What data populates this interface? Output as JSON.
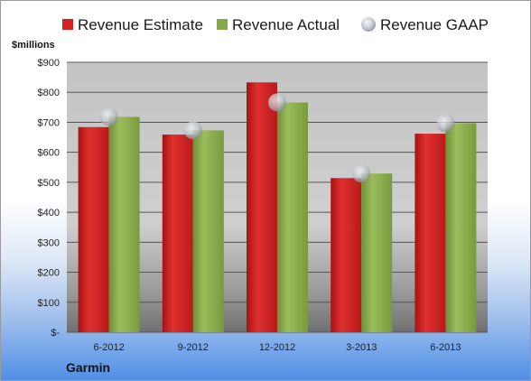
{
  "company": "Garmin",
  "chart_data": {
    "type": "bar",
    "ylabel": "$millions",
    "categories": [
      "6-2012",
      "9-2012",
      "12-2012",
      "3-2013",
      "6-2013"
    ],
    "ylim": [
      0,
      900
    ],
    "yticks": [
      {
        "value": 0,
        "label": "$-"
      },
      {
        "value": 100,
        "label": "$100"
      },
      {
        "value": 200,
        "label": "$200"
      },
      {
        "value": 300,
        "label": "$300"
      },
      {
        "value": 400,
        "label": "$400"
      },
      {
        "value": 500,
        "label": "$500"
      },
      {
        "value": 600,
        "label": "$600"
      },
      {
        "value": 700,
        "label": "$700"
      },
      {
        "value": 800,
        "label": "$800"
      },
      {
        "value": 900,
        "label": "$900"
      }
    ],
    "grid": true,
    "legend_position": "top",
    "series": [
      {
        "name": "Revenue Estimate",
        "kind": "bar",
        "color": "#d42222",
        "values": [
          684,
          659,
          833,
          514,
          662
        ]
      },
      {
        "name": "Revenue Actual",
        "kind": "bar",
        "color": "#86a84a",
        "values": [
          718,
          673,
          766,
          529,
          697
        ]
      },
      {
        "name": "Revenue GAAP",
        "kind": "marker",
        "color": "#b8bcc4",
        "values": [
          718,
          673,
          766,
          529,
          697
        ]
      }
    ]
  }
}
